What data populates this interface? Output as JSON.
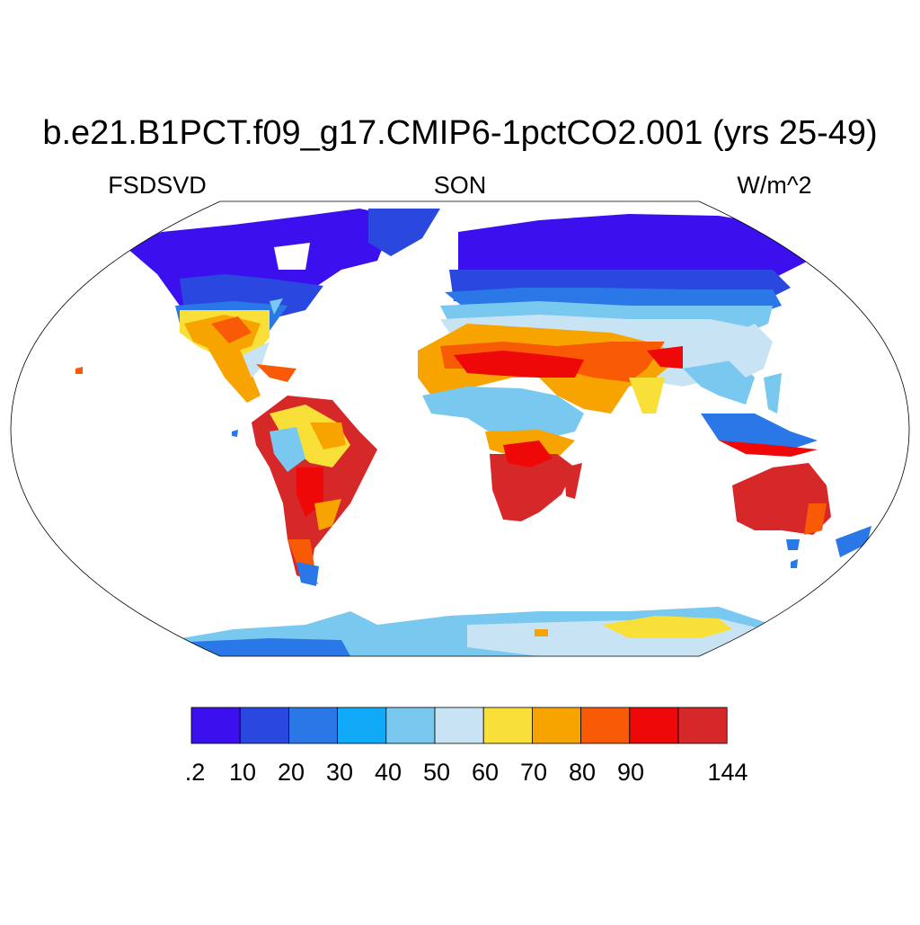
{
  "title": "b.e21.B1PCT.f09_g17.CMIP6-1pctCO2.001 (yrs 25-49)",
  "left_label": "FSDSVD",
  "center_label": "SON",
  "right_label": "W/m^2",
  "colorbar": {
    "colors": [
      "#3c10ee",
      "#2a48e0",
      "#2a78e8",
      "#10aaf8",
      "#78c8f0",
      "#c8e4f4",
      "#f8e038",
      "#f8a400",
      "#f85a06",
      "#ee0808",
      "#d62828"
    ],
    "tick_labels": [
      ".2",
      "10",
      "20",
      "30",
      "40",
      "50",
      "60",
      "70",
      "80",
      "90",
      "144"
    ]
  }
}
